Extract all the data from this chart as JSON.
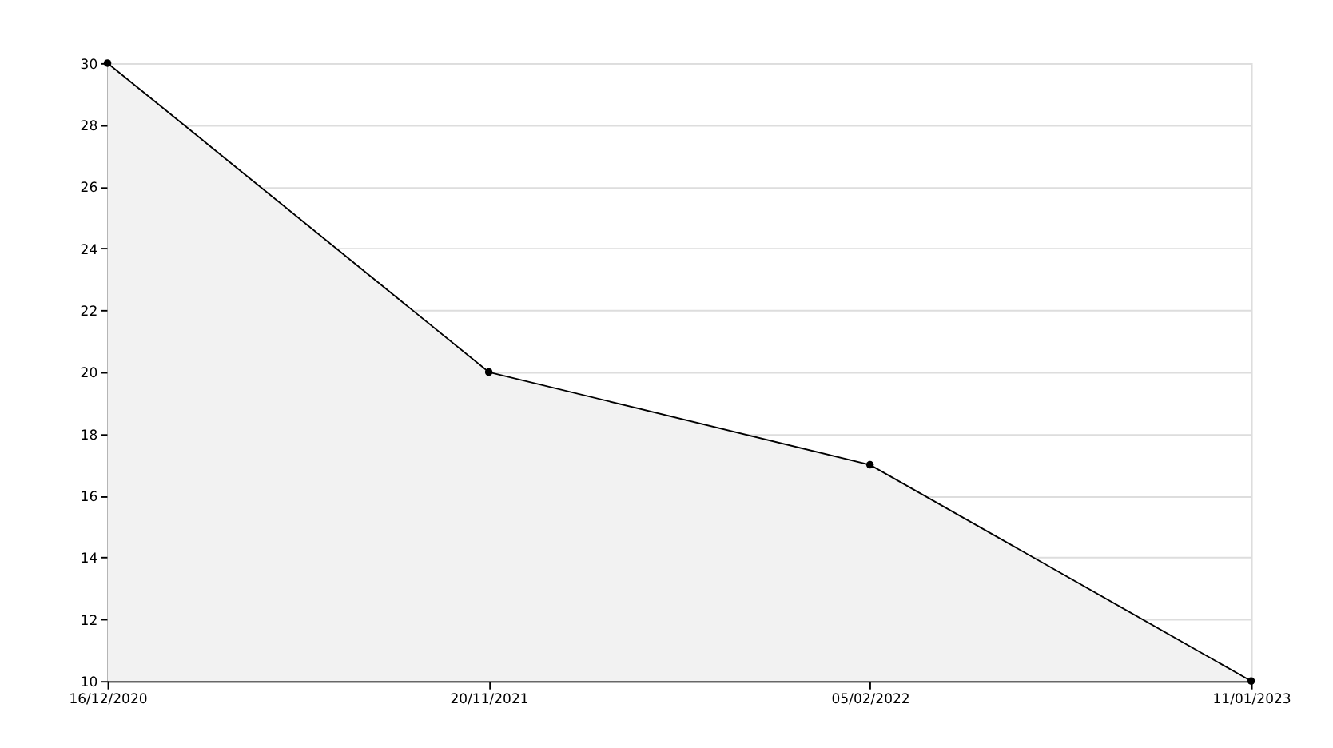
{
  "chart_data": {
    "type": "area",
    "categories": [
      "16/12/2020",
      "20/11/2021",
      "05/02/2022",
      "11/01/2023"
    ],
    "series": [
      {
        "color": "#000000",
        "values": [
          30,
          20,
          17,
          10
        ]
      }
    ],
    "ylim": [
      10,
      30
    ],
    "yticks": [
      10,
      12,
      14,
      16,
      18,
      20,
      22,
      24,
      26,
      28,
      30
    ],
    "grid": "y",
    "marker": "circle",
    "line_style": "solid"
  }
}
